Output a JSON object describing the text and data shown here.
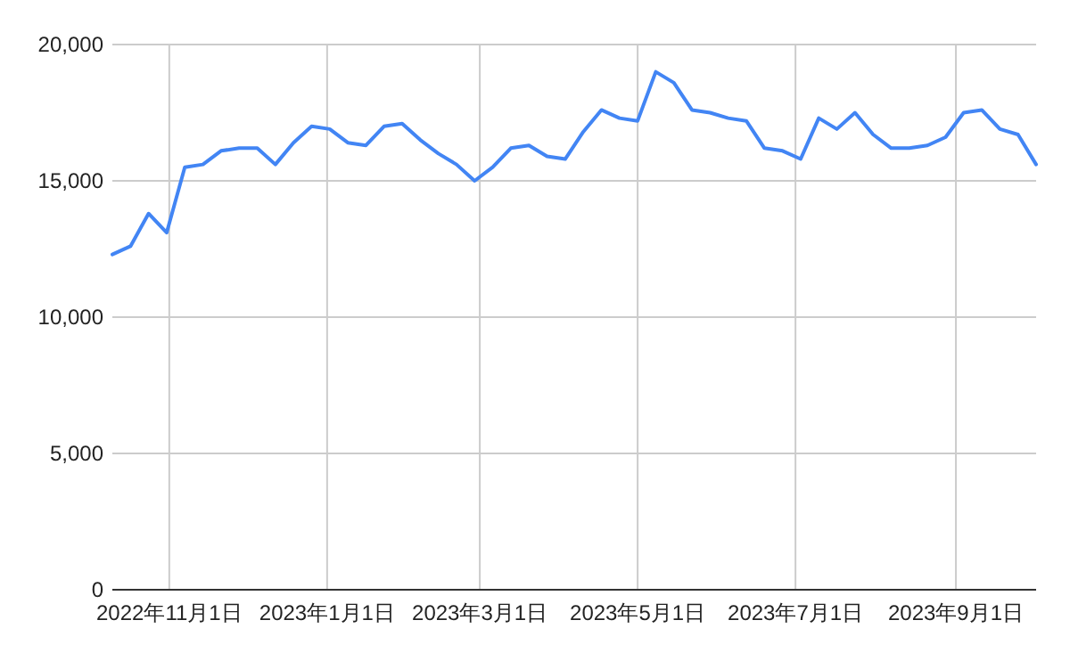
{
  "chart_data": {
    "type": "line",
    "x": [
      "2022-10-10",
      "2022-10-17",
      "2022-10-24",
      "2022-10-31",
      "2022-11-07",
      "2022-11-14",
      "2022-11-21",
      "2022-11-28",
      "2022-12-05",
      "2022-12-12",
      "2022-12-19",
      "2022-12-26",
      "2023-01-02",
      "2023-01-09",
      "2023-01-16",
      "2023-01-23",
      "2023-01-30",
      "2023-02-06",
      "2023-02-13",
      "2023-02-20",
      "2023-02-27",
      "2023-03-06",
      "2023-03-13",
      "2023-03-20",
      "2023-03-27",
      "2023-04-03",
      "2023-04-10",
      "2023-04-17",
      "2023-04-24",
      "2023-05-01",
      "2023-05-08",
      "2023-05-15",
      "2023-05-22",
      "2023-05-29",
      "2023-06-05",
      "2023-06-12",
      "2023-06-19",
      "2023-06-26",
      "2023-07-03",
      "2023-07-10",
      "2023-07-17",
      "2023-07-24",
      "2023-07-31",
      "2023-08-07",
      "2023-08-14",
      "2023-08-21",
      "2023-08-28",
      "2023-09-04",
      "2023-09-11",
      "2023-09-18",
      "2023-09-25",
      "2023-10-02"
    ],
    "series": [
      {
        "color": "#4285f4",
        "values": [
          12300,
          12600,
          13800,
          13100,
          15500,
          15600,
          16100,
          16200,
          16200,
          15600,
          16400,
          17000,
          16900,
          16400,
          16300,
          17000,
          17100,
          16500,
          16000,
          15600,
          15000,
          15500,
          16200,
          16300,
          15900,
          15800,
          16800,
          17600,
          17300,
          17200,
          19000,
          18600,
          17600,
          17500,
          17300,
          17200,
          16200,
          16100,
          15800,
          17300,
          16900,
          17500,
          16700,
          16200,
          16200,
          16300,
          16600,
          17500,
          17600,
          16900,
          16700,
          15600
        ]
      }
    ],
    "xlim": [
      "2022-10-10",
      "2023-10-02"
    ],
    "xticks": [
      {
        "value": "2022-11-01",
        "label": "2022年11月1日"
      },
      {
        "value": "2023-01-01",
        "label": "2023年1月1日"
      },
      {
        "value": "2023-03-01",
        "label": "2023年3月1日"
      },
      {
        "value": "2023-05-01",
        "label": "2023年5月1日"
      },
      {
        "value": "2023-07-01",
        "label": "2023年7月1日"
      },
      {
        "value": "2023-09-01",
        "label": "2023年9月1日"
      }
    ],
    "ylim": [
      0,
      20000
    ],
    "yticks": [
      0,
      {
        "value": 5000,
        "label": "5,000"
      },
      {
        "value": 10000,
        "label": "10,000"
      },
      {
        "value": 15000,
        "label": "15,000"
      },
      {
        "value": 20000,
        "label": "20,000"
      }
    ],
    "grid": true
  }
}
